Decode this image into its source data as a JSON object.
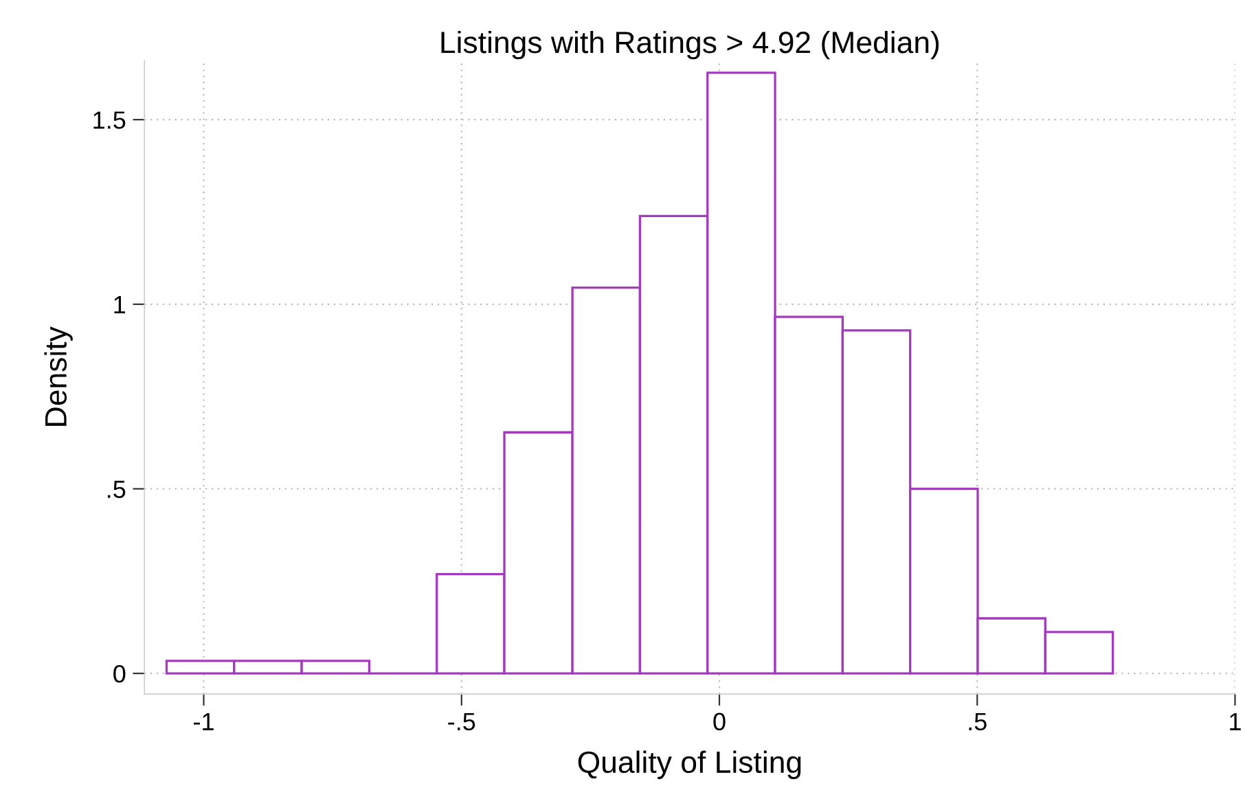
{
  "chart_data": {
    "type": "histogram",
    "title": "Listings with Ratings > 4.92 (Median)",
    "xlabel": "Quality of Listing",
    "ylabel": "Density",
    "bins": [
      -1.072,
      -0.941,
      -0.81,
      -0.679,
      -0.548,
      -0.417,
      -0.285,
      -0.154,
      -0.023,
      0.108,
      0.239,
      0.37,
      0.501,
      0.632,
      0.763
    ],
    "values": [
      0.034,
      0.034,
      0.034,
      0,
      0.269,
      0.653,
      1.045,
      1.239,
      1.627,
      0.966,
      0.929,
      0.5,
      0.149,
      0.112
    ],
    "color": "#a43bbf",
    "xlim": [
      -1.115,
      1.0
    ],
    "ylim": [
      -0.056,
      1.66
    ],
    "xticks": [
      {
        "value": -1,
        "label": "-1"
      },
      {
        "value": -0.5,
        "label": "-.5"
      },
      {
        "value": 0,
        "label": "0"
      },
      {
        "value": 0.5,
        "label": ".5"
      },
      {
        "value": 1,
        "label": "1"
      }
    ],
    "yticks": [
      {
        "value": 0,
        "label": "0"
      },
      {
        "value": 0.5,
        "label": ".5"
      },
      {
        "value": 1,
        "label": "1"
      },
      {
        "value": 1.5,
        "label": "1.5"
      }
    ],
    "grid": true
  }
}
